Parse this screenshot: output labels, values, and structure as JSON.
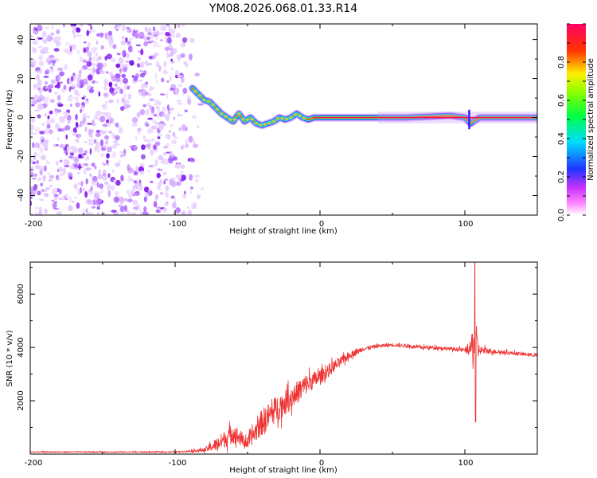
{
  "title": "YM08.2026.068.01.33.R14",
  "colors": {
    "signal": "#ee3333",
    "noise": "#8822ee",
    "axis": "#000000",
    "colorbar_stops": [
      "#ffffff",
      "#ff00ff",
      "#0000ff",
      "#00ffff",
      "#00ff00",
      "#ffff00",
      "#ff0000",
      "#ff0066"
    ]
  },
  "chart_data": [
    {
      "type": "heatmap",
      "name": "spectrogram",
      "xlabel": "Height of straight line (km)",
      "ylabel": "Frequency (Hz)",
      "xlim": [
        -200,
        150
      ],
      "ylim": [
        -50,
        48
      ],
      "xticks": [
        "-200",
        "-100",
        "0",
        "100"
      ],
      "yticks": [
        "-40",
        "-20",
        "0",
        "20",
        "40"
      ],
      "noise_region_x": [
        -200,
        -87
      ],
      "ridge_trace": {
        "height_km": [
          -88,
          -84,
          -80,
          -76,
          -72,
          -68,
          -64,
          -60,
          -56,
          -52,
          -48,
          -44,
          -40,
          -36,
          -32,
          -28,
          -24,
          -20,
          -16,
          -12,
          -8,
          -4,
          0,
          10,
          30,
          60,
          90,
          100,
          104,
          110,
          130,
          150
        ],
        "frequency_hz": [
          15,
          12,
          9,
          8,
          5,
          2,
          0,
          -2,
          2,
          -2,
          0,
          -3,
          -4,
          -3,
          -2,
          0,
          -1,
          0,
          2,
          0,
          -1,
          0,
          0,
          0,
          0,
          0,
          1,
          0,
          -3,
          0,
          0,
          0
        ]
      },
      "colorbar": {
        "label": "Normalized spectral amplitude",
        "range": [
          0,
          1
        ],
        "ticks": [
          "0.0",
          "0.2",
          "0.4",
          "0.6",
          "0.8"
        ]
      }
    },
    {
      "type": "line",
      "name": "snr",
      "xlabel": "Height of straight line (km)",
      "ylabel": "SNR (10 * v/v)",
      "xlim": [
        -200,
        150
      ],
      "ylim": [
        0,
        7200
      ],
      "xticks": [
        "-200",
        "-100",
        "0",
        "100"
      ],
      "yticks": [
        "2000",
        "4000",
        "6000"
      ],
      "envelope": {
        "height_km": [
          -200,
          -100,
          -80,
          -70,
          -60,
          -50,
          -40,
          -30,
          -20,
          -10,
          0,
          10,
          20,
          30,
          40,
          50,
          60,
          70,
          80,
          90,
          100,
          104,
          106,
          107,
          108,
          110,
          120,
          130,
          140,
          150
        ],
        "mean_snr": [
          80,
          80,
          150,
          400,
          800,
          400,
          1200,
          1700,
          2100,
          2600,
          2900,
          3300,
          3700,
          3950,
          4050,
          4100,
          4050,
          4000,
          4000,
          3950,
          3900,
          3950,
          4000,
          4000,
          4000,
          3900,
          3850,
          3800,
          3750,
          3700
        ],
        "noise_amplitude": [
          40,
          40,
          120,
          500,
          700,
          400,
          900,
          900,
          800,
          700,
          500,
          400,
          250,
          150,
          120,
          120,
          120,
          120,
          120,
          120,
          150,
          500,
          1800,
          2600,
          1500,
          300,
          150,
          120,
          120,
          120
        ]
      }
    }
  ]
}
